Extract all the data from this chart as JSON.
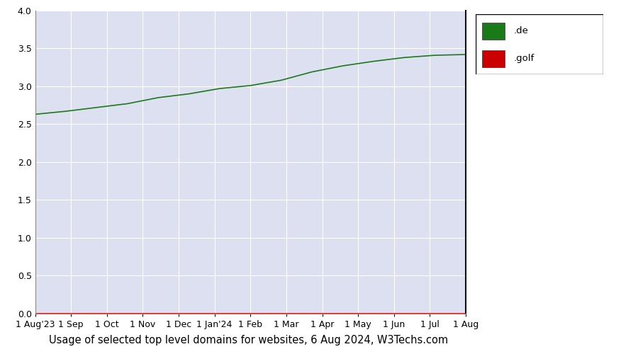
{
  "title": "Usage of selected top level domains for websites, 6 Aug 2024, W3Techs.com",
  "x_tick_labels": [
    "1 Aug'23",
    "1 Sep",
    "1 Oct",
    "1 Nov",
    "1 Dec",
    "1 Jan'24",
    "1 Feb",
    "1 Mar",
    "1 Apr",
    "1 May",
    "1 Jun",
    "1 Jul",
    "1 Aug"
  ],
  "de_values": [
    2.63,
    2.67,
    2.72,
    2.77,
    2.85,
    2.9,
    2.97,
    3.01,
    3.08,
    3.19,
    3.27,
    3.33,
    3.38,
    3.41,
    3.42
  ],
  "golf_values": [
    0.0,
    0.0,
    0.0,
    0.0,
    0.0,
    0.0,
    0.0,
    0.0,
    0.0,
    0.0,
    0.0,
    0.0,
    0.0,
    0.0,
    0.0
  ],
  "de_color": "#1a7a1a",
  "golf_color": "#cc0000",
  "background_color": "#dde0f0",
  "outer_background": "#ffffff",
  "ylim": [
    0,
    4
  ],
  "yticks": [
    0,
    0.5,
    1.0,
    1.5,
    2.0,
    2.5,
    3.0,
    3.5,
    4.0
  ],
  "grid_color": "#ffffff",
  "legend_labels": [
    ".de",
    ".golf"
  ],
  "title_fontsize": 10.5,
  "plot_right_border_color": "#333333"
}
